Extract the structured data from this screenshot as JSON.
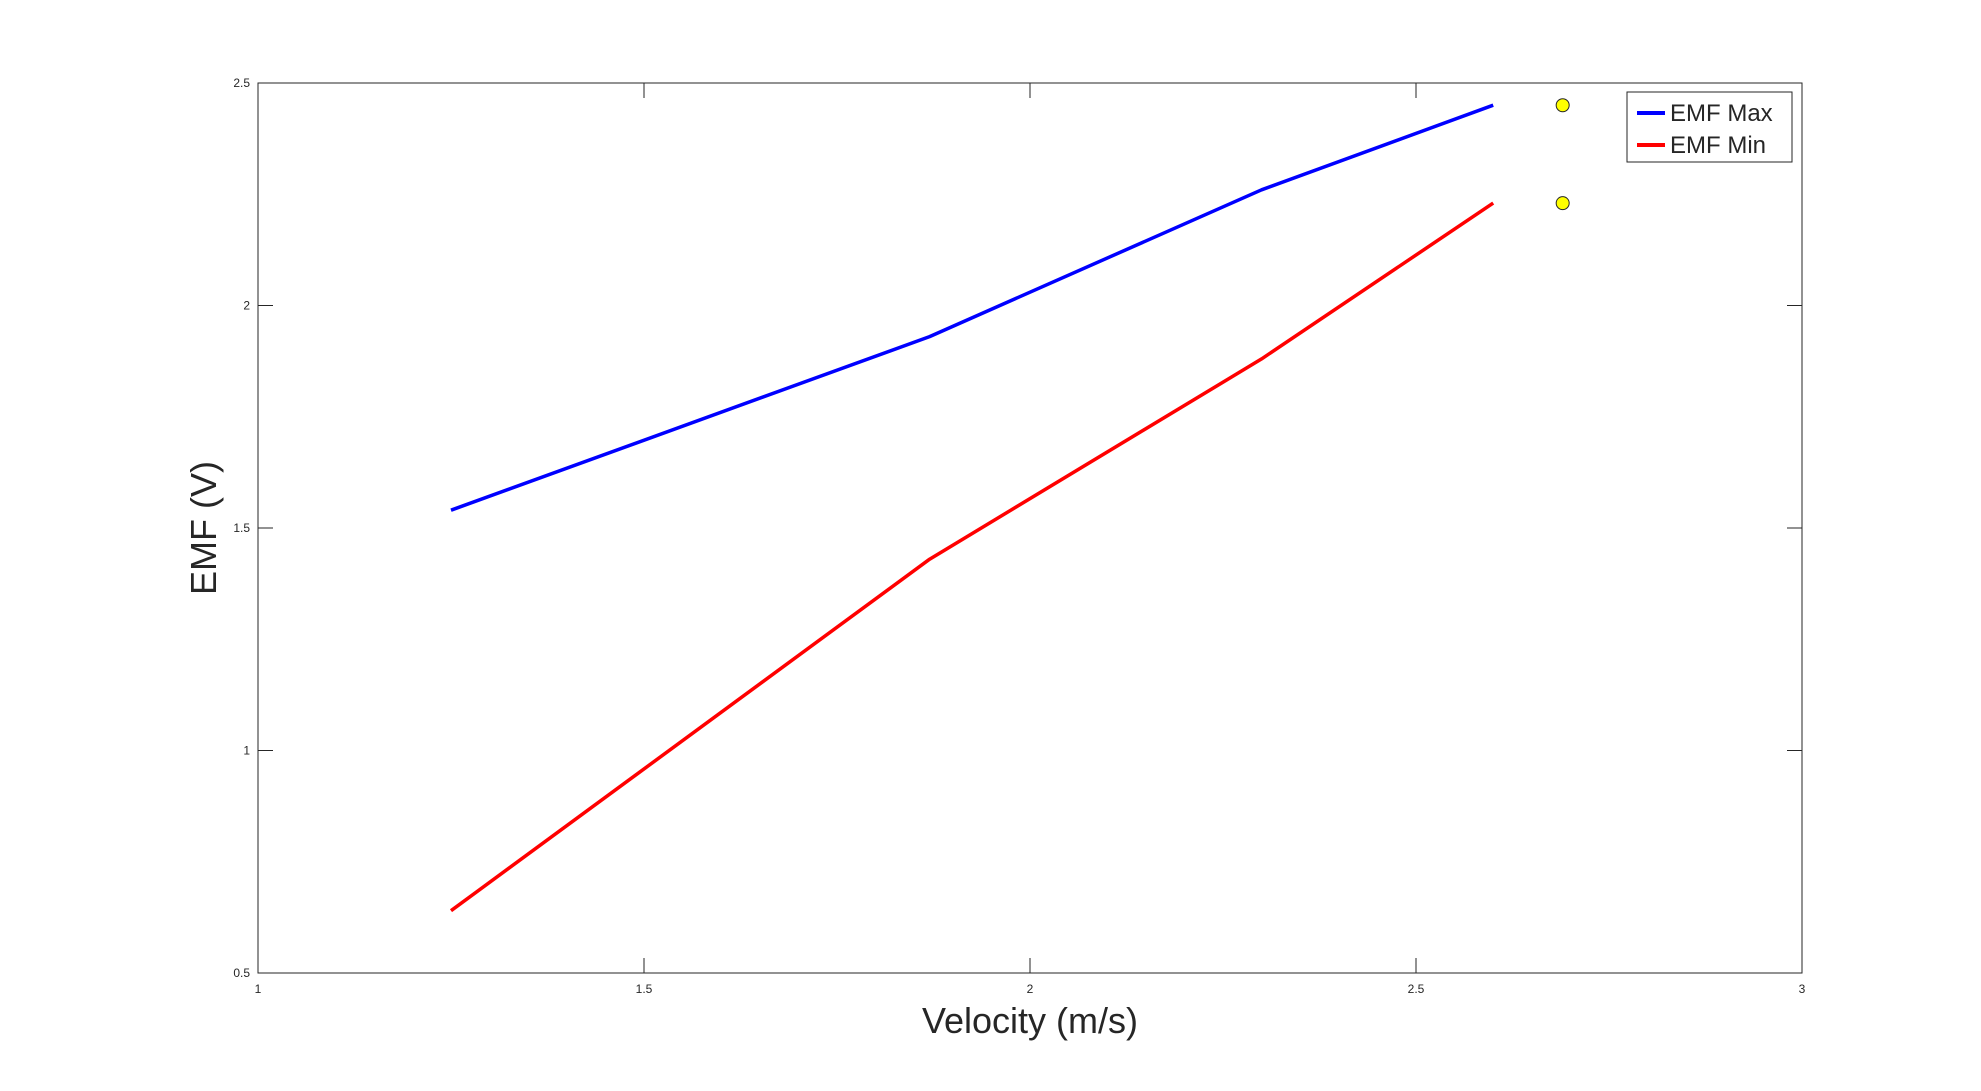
{
  "chart_data": {
    "type": "line",
    "title": "",
    "xlabel": "Velocity (m/s)",
    "ylabel": "EMF (V)",
    "xlim": [
      1,
      3
    ],
    "ylim": [
      0.5,
      2.5
    ],
    "x_ticks": [
      "1",
      "1.5",
      "2",
      "2.5",
      "3"
    ],
    "y_ticks": [
      "0.5",
      "1",
      "1.5",
      "2",
      "2.5"
    ],
    "grid": false,
    "legend_position": "top-right",
    "series": [
      {
        "name": "EMF Max",
        "color": "#0000ff",
        "x": [
          1.25,
          1.87,
          2.3,
          2.6
        ],
        "y": [
          1.54,
          1.93,
          2.26,
          2.45
        ]
      },
      {
        "name": "EMF Min",
        "color": "#ff0000",
        "x": [
          1.25,
          1.87,
          2.3,
          2.6
        ],
        "y": [
          0.64,
          1.43,
          1.88,
          2.23
        ]
      }
    ],
    "markers": [
      {
        "x": 2.69,
        "y": 2.45,
        "color": "#ffff00"
      },
      {
        "x": 2.69,
        "y": 2.23,
        "color": "#ffff00"
      }
    ]
  }
}
